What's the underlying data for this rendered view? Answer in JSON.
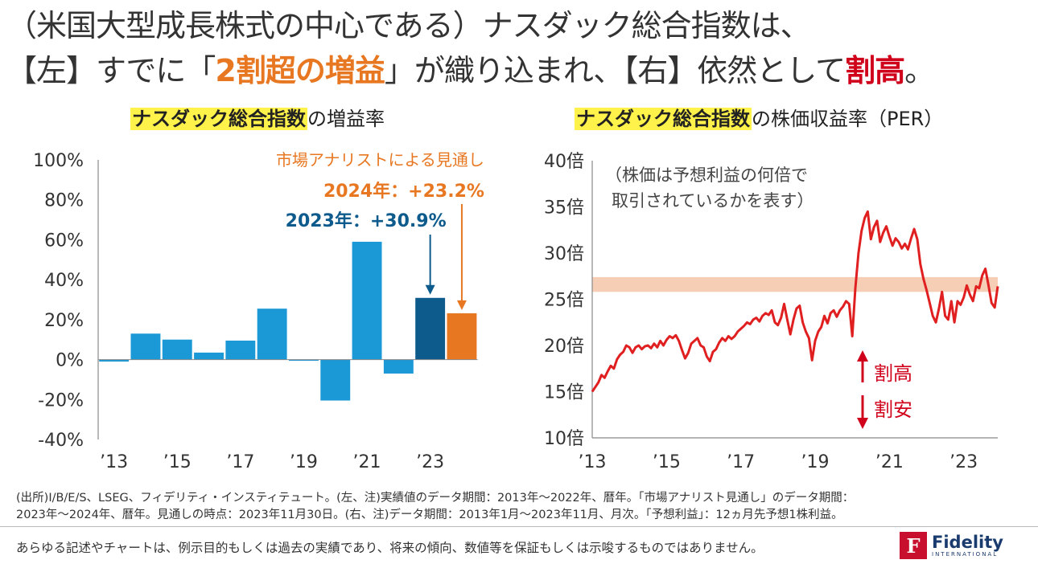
{
  "headline": {
    "line1": "（米国大型成長株式の中心である）ナスダック総合指数は、",
    "line2_a": "【左】すでに「",
    "line2_b": "2割超の増益",
    "line2_c": "」が織り込まれ、【右】依然として",
    "line2_d": "割高",
    "line2_e": "。"
  },
  "left_subtitle": {
    "mark": "ナスダック総合指数",
    "rest": "の増益率"
  },
  "right_subtitle": {
    "mark": "ナスダック総合指数",
    "rest": "の株価収益率（PER）"
  },
  "colors": {
    "bar_actual": "#1b98d6",
    "bar_2023": "#0d5a8c",
    "bar_forecast": "#e87722",
    "line": "#e02020",
    "band": "#f6cdb5",
    "orange_text": "#e87722",
    "blue_text": "#0d5a8c",
    "arrow_red": "#d0021b"
  },
  "chart_data": [
    {
      "type": "bar",
      "title": "ナスダック総合指数の増益率",
      "categories": [
        "2013",
        "2014",
        "2015",
        "2016",
        "2017",
        "2018",
        "2019",
        "2020",
        "2021",
        "2022",
        "2023",
        "2024"
      ],
      "x_tick_labels": [
        "’13",
        "’15",
        "’17",
        "’19",
        "’21",
        "’23"
      ],
      "values": [
        -1,
        13,
        10,
        3.5,
        9.5,
        25.5,
        -0.5,
        -20.5,
        59,
        -7,
        30.9,
        23.2
      ],
      "y_tick_labels": [
        "100%",
        "80%",
        "60%",
        "40%",
        "20%",
        "0%",
        "-20%",
        "-40%"
      ],
      "ylim": [
        -40,
        100
      ],
      "annotations": {
        "a2023": "2023年：+30.9%",
        "forecast_title": "市場アナリストによる見通し",
        "forecast_value": "2024年：+23.2%"
      }
    },
    {
      "type": "line",
      "title": "ナスダック総合指数の株価収益率（PER）",
      "x_tick_labels": [
        "’13",
        "’15",
        "’17",
        "’19",
        "’21",
        "’23"
      ],
      "x_range": [
        "2013-01",
        "2023-11"
      ],
      "y_tick_labels": [
        "40倍",
        "35倍",
        "30倍",
        "25倍",
        "20倍",
        "15倍",
        "10倍"
      ],
      "ylim": [
        10,
        40
      ],
      "band": [
        25.8,
        27.4
      ],
      "series": [
        {
          "values": [
            15,
            15.5,
            16,
            16.8,
            16.5,
            17.2,
            17.8,
            17.5,
            18.5,
            19,
            19.3,
            20,
            19.8,
            19.2,
            19.8,
            20,
            19.6,
            19.9,
            20,
            19.7,
            20.2,
            19.8,
            20.5,
            20,
            20.6,
            21,
            20.8,
            21.1,
            20.5,
            19.5,
            18.6,
            19.2,
            20.2,
            20.5,
            20.8,
            20,
            19.8,
            18.8,
            18.3,
            19.3,
            19.6,
            20.3,
            20.8,
            20.5,
            21,
            20.7,
            21,
            21.5,
            21.8,
            22.1,
            22.5,
            22.3,
            22.8,
            23,
            22.6,
            23.2,
            23.5,
            23.3,
            23.8,
            22.5,
            22.2,
            23,
            24.5,
            22.8,
            21.2,
            22.8,
            24,
            24.3,
            22.5,
            21.5,
            20.8,
            18.4,
            20.5,
            21.5,
            22,
            23.2,
            22.4,
            23.5,
            23.8,
            23.1,
            23.8,
            24.2,
            24.8,
            24.5,
            21,
            26.2,
            30,
            32.4,
            33.8,
            34.5,
            31.5,
            32.8,
            33.5,
            31.2,
            32.2,
            32.9,
            31.8,
            30.8,
            31.6,
            31.2,
            30.5,
            31,
            30.4,
            31.6,
            32.6,
            31.5,
            28.8,
            27.2,
            26,
            24.6,
            23.2,
            22.5,
            24,
            25.8,
            23.2,
            22.8,
            24.8,
            22.5,
            24.8,
            24.4,
            25.2,
            26.5,
            25.5,
            24.8,
            26.4,
            26.2,
            27.6,
            28.3,
            26.5,
            24.6,
            24.1,
            26.4
          ]
        }
      ],
      "annotations": {
        "note_line1": "（株価は予想利益の何倍で",
        "note_line2": "取引されているかを表す）",
        "up_label": "割高",
        "down_label": "割安"
      }
    }
  ],
  "footnote": {
    "line1": "(出所)I/B/E/S、LSEG、フィデリティ・インスティテュート。(左、注)実績値のデータ期間：2013年～2022年、暦年。「市場アナリスト見通し」のデータ期間：",
    "line2": "2023年～2024年、暦年。見通しの時点：2023年11月30日。(右、注)データ期間：2013年1月～2023年11月、月次。「予想利益」：12ヵ月先予想1株利益。"
  },
  "disclaimer": "あらゆる記述やチャートは、例示目的もしくは過去の実績であり、将来の傾向、数値等を保証もしくは示唆するものではありません。",
  "logo": {
    "mark": "F",
    "name": "Fidelity",
    "sub": "INTERNATIONAL"
  }
}
